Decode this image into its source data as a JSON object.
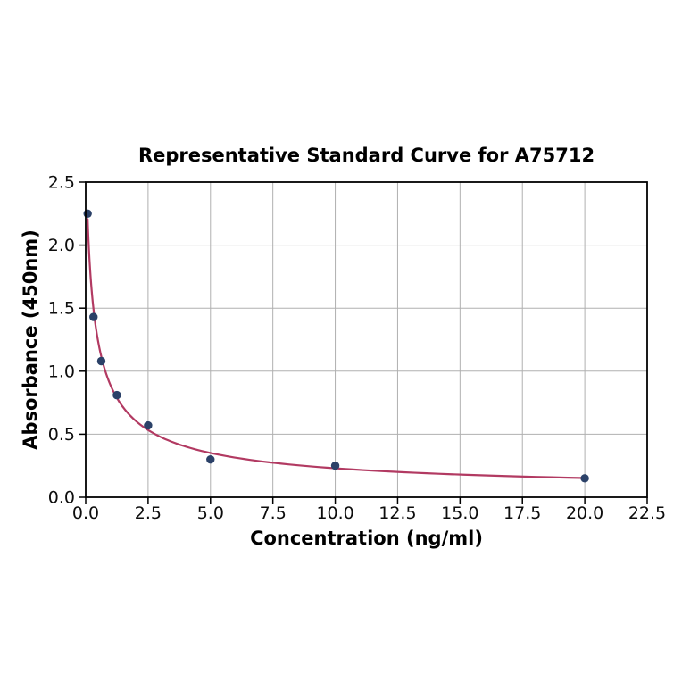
{
  "chart_data": {
    "type": "scatter",
    "title": "Representative Standard Curve for A75712",
    "xlabel": "Concentration (ng/ml)",
    "ylabel": "Absorbance (450nm)",
    "xlim": [
      0,
      22.5
    ],
    "ylim": [
      0,
      2.5
    ],
    "xticks": [
      0,
      2.5,
      5,
      7.5,
      10,
      12.5,
      15,
      17.5,
      20,
      22.5
    ],
    "xtick_labels": [
      "0.0",
      "2.5",
      "5.0",
      "7.5",
      "10.0",
      "12.5",
      "15.0",
      "17.5",
      "20.0",
      "22.5"
    ],
    "yticks": [
      0,
      0.5,
      1,
      1.5,
      2,
      2.5
    ],
    "ytick_labels": [
      "0.0",
      "0.5",
      "1.0",
      "1.5",
      "2.0",
      "2.5"
    ],
    "grid": true,
    "legend": "none",
    "points": [
      {
        "x": 0.078,
        "y": 2.25
      },
      {
        "x": 0.3125,
        "y": 1.43
      },
      {
        "x": 0.625,
        "y": 1.08
      },
      {
        "x": 1.25,
        "y": 0.81
      },
      {
        "x": 2.5,
        "y": 0.57
      },
      {
        "x": 5,
        "y": 0.3
      },
      {
        "x": 10,
        "y": 0.25
      },
      {
        "x": 20,
        "y": 0.15
      }
    ],
    "fit": {
      "model": "4PL",
      "a": 3.0,
      "b": 0.75,
      "c": 0.3,
      "d": 0.03,
      "x_start": 0.078,
      "x_end": 20
    },
    "colors": {
      "curve": "#b23a62",
      "marker": "#2b4168",
      "grid": "#b0b0b0",
      "axis": "#000000",
      "text": "#0d0d0d",
      "background": "#ffffff"
    }
  }
}
